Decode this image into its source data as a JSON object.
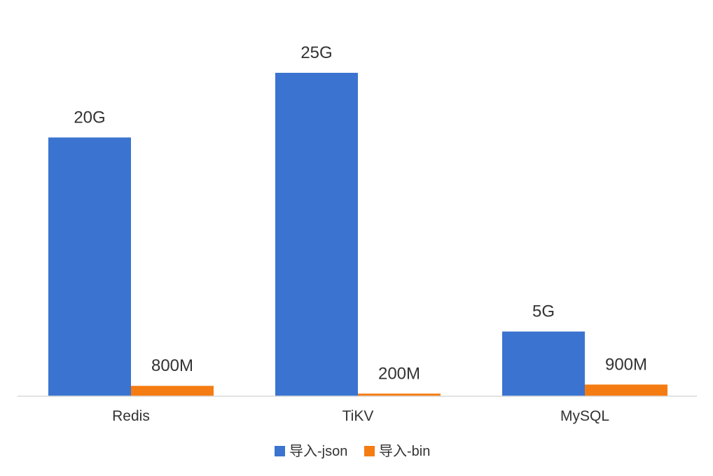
{
  "chart_data": {
    "type": "bar",
    "title": "",
    "xlabel": "",
    "ylabel": "",
    "categories": [
      "Redis",
      "TiKV",
      "MySQL"
    ],
    "series": [
      {
        "name": "导入-json",
        "values": [
          20,
          25,
          5
        ],
        "labels": [
          "20G",
          "25G",
          "5G"
        ],
        "color": "#3a74d0"
      },
      {
        "name": "导入-bin",
        "values": [
          0.8,
          0.2,
          0.9
        ],
        "labels": [
          "800M",
          "200M",
          "900M"
        ],
        "color": "#f57c12"
      }
    ],
    "unit": "GB",
    "ylim": [
      0,
      25
    ],
    "grid": false,
    "legend": "bottom"
  }
}
